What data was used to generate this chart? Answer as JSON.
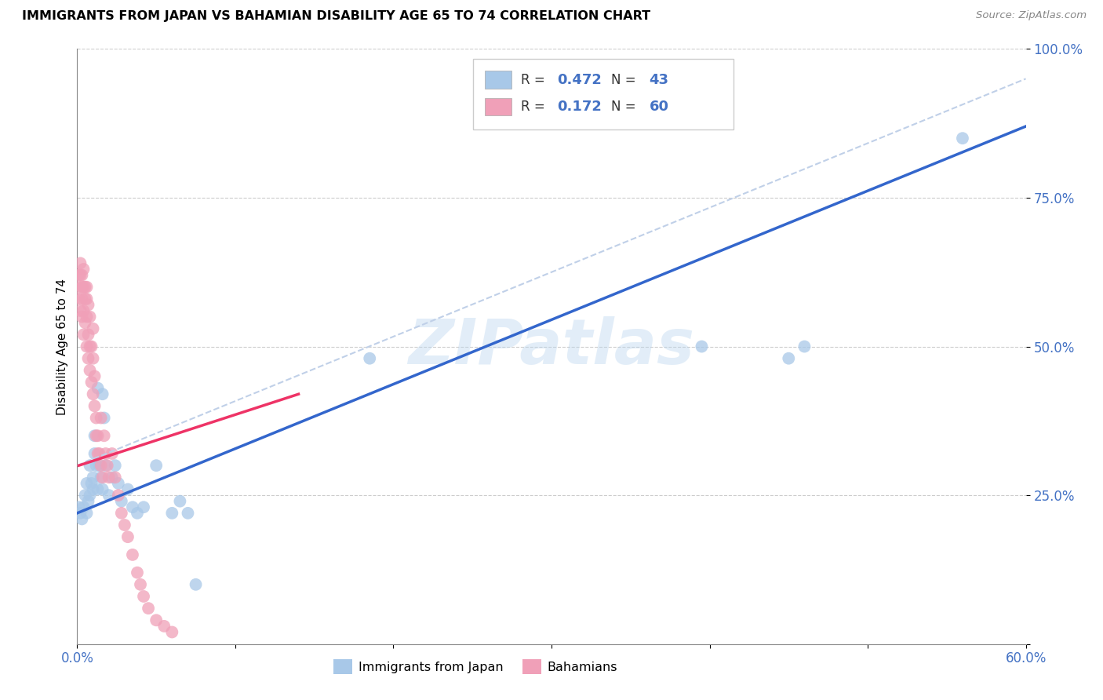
{
  "title": "IMMIGRANTS FROM JAPAN VS BAHAMIAN DISABILITY AGE 65 TO 74 CORRELATION CHART",
  "source": "Source: ZipAtlas.com",
  "ylabel": "Disability Age 65 to 74",
  "xlim": [
    0.0,
    0.6
  ],
  "ylim": [
    0.0,
    1.0
  ],
  "xtick_positions": [
    0.0,
    0.1,
    0.2,
    0.3,
    0.4,
    0.5,
    0.6
  ],
  "xticklabels": [
    "0.0%",
    "",
    "",
    "",
    "",
    "",
    "60.0%"
  ],
  "ytick_positions": [
    0.0,
    0.25,
    0.5,
    0.75,
    1.0
  ],
  "yticklabels": [
    "",
    "25.0%",
    "50.0%",
    "75.0%",
    "100.0%"
  ],
  "blue_color": "#a8c8e8",
  "pink_color": "#f0a0b8",
  "blue_line_color": "#3366cc",
  "pink_line_color": "#ee3366",
  "blue_dash_color": "#ccddee",
  "japan_x": [
    0.001,
    0.002,
    0.003,
    0.004,
    0.005,
    0.006,
    0.006,
    0.007,
    0.008,
    0.008,
    0.009,
    0.01,
    0.01,
    0.011,
    0.011,
    0.012,
    0.013,
    0.013,
    0.014,
    0.015,
    0.016,
    0.016,
    0.017,
    0.018,
    0.02,
    0.022,
    0.024,
    0.026,
    0.028,
    0.032,
    0.035,
    0.038,
    0.042,
    0.05,
    0.06,
    0.065,
    0.07,
    0.075,
    0.395,
    0.45,
    0.46,
    0.56,
    0.185
  ],
  "japan_y": [
    0.23,
    0.22,
    0.21,
    0.23,
    0.25,
    0.27,
    0.22,
    0.24,
    0.25,
    0.3,
    0.27,
    0.26,
    0.28,
    0.32,
    0.35,
    0.3,
    0.26,
    0.43,
    0.3,
    0.28,
    0.42,
    0.26,
    0.38,
    0.3,
    0.25,
    0.28,
    0.3,
    0.27,
    0.24,
    0.26,
    0.23,
    0.22,
    0.23,
    0.3,
    0.22,
    0.24,
    0.22,
    0.1,
    0.5,
    0.48,
    0.5,
    0.85,
    0.48
  ],
  "bahamas_x": [
    0.001,
    0.001,
    0.001,
    0.002,
    0.002,
    0.002,
    0.003,
    0.003,
    0.003,
    0.003,
    0.004,
    0.004,
    0.004,
    0.004,
    0.005,
    0.005,
    0.005,
    0.006,
    0.006,
    0.006,
    0.006,
    0.007,
    0.007,
    0.007,
    0.008,
    0.008,
    0.008,
    0.009,
    0.009,
    0.01,
    0.01,
    0.01,
    0.011,
    0.011,
    0.012,
    0.012,
    0.013,
    0.013,
    0.014,
    0.015,
    0.015,
    0.016,
    0.017,
    0.018,
    0.019,
    0.02,
    0.022,
    0.024,
    0.026,
    0.028,
    0.03,
    0.032,
    0.035,
    0.038,
    0.04,
    0.042,
    0.045,
    0.05,
    0.055,
    0.06
  ],
  "bahamas_y": [
    0.62,
    0.6,
    0.58,
    0.64,
    0.62,
    0.56,
    0.6,
    0.58,
    0.62,
    0.55,
    0.63,
    0.6,
    0.56,
    0.52,
    0.6,
    0.58,
    0.54,
    0.6,
    0.58,
    0.55,
    0.5,
    0.57,
    0.52,
    0.48,
    0.55,
    0.5,
    0.46,
    0.5,
    0.44,
    0.53,
    0.48,
    0.42,
    0.45,
    0.4,
    0.38,
    0.35,
    0.35,
    0.32,
    0.32,
    0.3,
    0.38,
    0.28,
    0.35,
    0.32,
    0.3,
    0.28,
    0.32,
    0.28,
    0.25,
    0.22,
    0.2,
    0.18,
    0.15,
    0.12,
    0.1,
    0.08,
    0.06,
    0.04,
    0.03,
    0.02
  ],
  "blue_line_x0": 0.0,
  "blue_line_y0": 0.22,
  "blue_line_x1": 0.6,
  "blue_line_y1": 0.87,
  "pink_line_x0": 0.001,
  "pink_line_y0": 0.3,
  "pink_line_x1": 0.14,
  "pink_line_y1": 0.42,
  "dash_line_x0": 0.0,
  "dash_line_y0": 0.3,
  "dash_line_x1": 0.6,
  "dash_line_y1": 0.95
}
